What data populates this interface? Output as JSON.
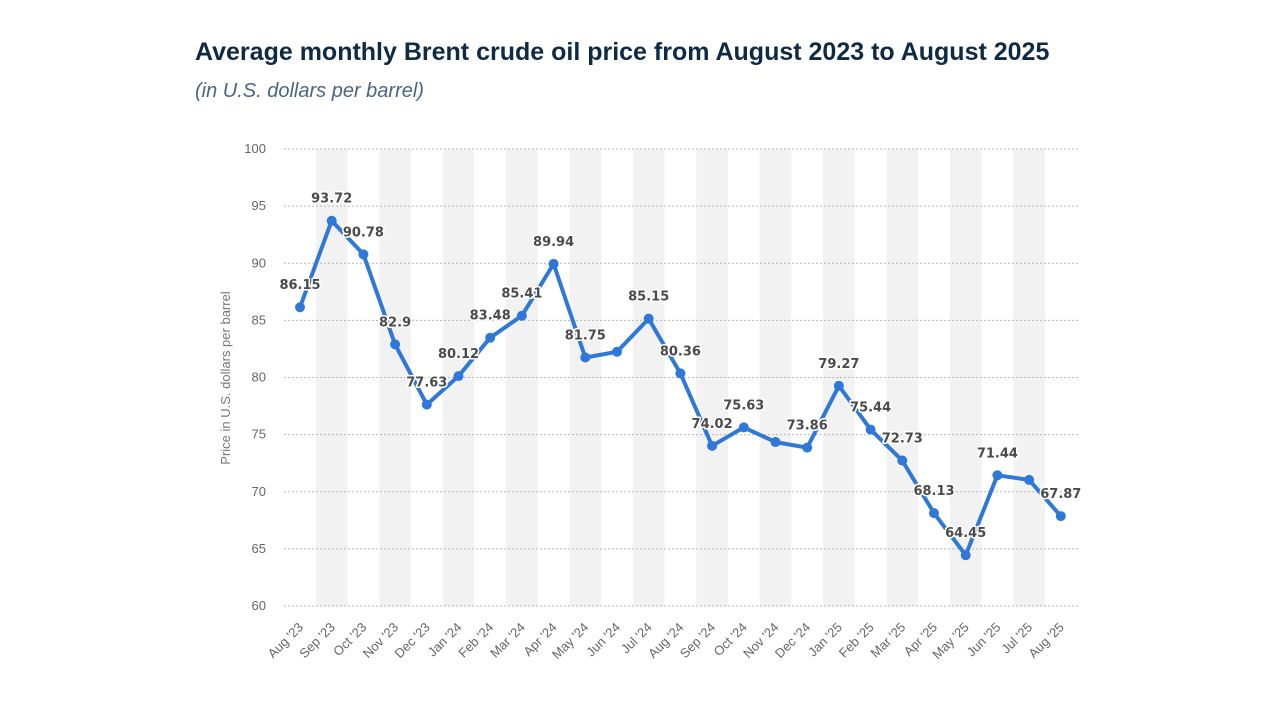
{
  "header": {
    "title": "Average monthly Brent crude oil price from August 2023 to August 2025",
    "subtitle": "(in U.S. dollars per barrel)"
  },
  "chart_data": {
    "type": "line",
    "title": "Average monthly Brent crude oil price from August 2023 to August 2025",
    "subtitle": "(in U.S. dollars per barrel)",
    "xlabel": "",
    "ylabel": "Price in U.S. dollars per barrel",
    "ylim": [
      60,
      100
    ],
    "yticks": [
      60,
      65,
      70,
      75,
      80,
      85,
      90,
      95,
      100
    ],
    "grid": true,
    "legend": "none",
    "line_color": "#2f78d8",
    "categories": [
      "Aug '23",
      "Sep '23",
      "Oct '23",
      "Nov '23",
      "Dec '23",
      "Jan '24",
      "Feb '24",
      "Mar '24",
      "Apr '24",
      "May '24",
      "Jun '24",
      "Jul '24",
      "Aug '24",
      "Sep '24",
      "Oct '24",
      "Nov '24",
      "Dec '24",
      "Jan '25",
      "Feb '25",
      "Mar '25",
      "Apr '25",
      "May '25",
      "Jun '25",
      "Jul '25",
      "Aug '25"
    ],
    "values": [
      86.15,
      93.72,
      90.78,
      82.9,
      77.63,
      80.12,
      83.48,
      85.41,
      89.94,
      81.75,
      82.25,
      85.15,
      80.36,
      74.02,
      75.63,
      74.35,
      73.86,
      79.27,
      75.44,
      72.73,
      68.13,
      64.45,
      71.44,
      71.04,
      67.87
    ],
    "data_labels": [
      "86.15",
      "93.72",
      "90.78",
      "82.9",
      "77.63",
      "80.12",
      "83.48",
      "85.41",
      "89.94",
      "81.75",
      "",
      "85.15",
      "80.36",
      "74.02",
      "75.63",
      "",
      "73.86",
      "79.27",
      "75.44",
      "72.73",
      "68.13",
      "64.45",
      "71.44",
      "",
      "67.87"
    ]
  }
}
